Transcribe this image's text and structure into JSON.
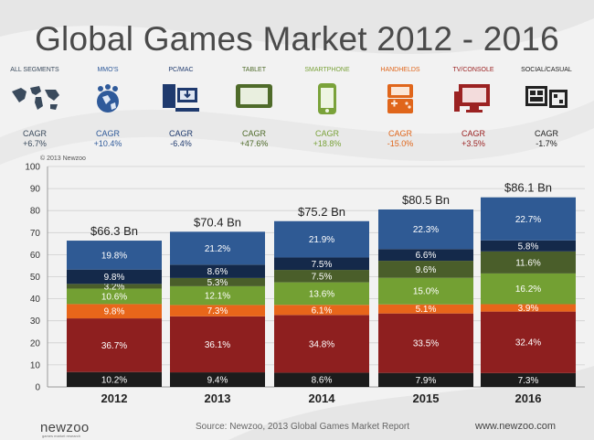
{
  "title": "Global Games Market 2012 - 2016",
  "copyright": "© 2013 Newzoo",
  "segments": [
    {
      "name": "ALL SEGMENTS",
      "icon": "globe-icon",
      "cagr_label": "CAGR",
      "cagr": "+6.7%",
      "color": "#3a4a5c"
    },
    {
      "name": "MMO'S",
      "icon": "mmo-globe-icon",
      "cagr_label": "CAGR",
      "cagr": "+10.4%",
      "color": "#2f5a9a"
    },
    {
      "name": "PC/MAC",
      "icon": "pc-icon",
      "cagr_label": "CAGR",
      "cagr": "-6.4%",
      "color": "#1f3a6e"
    },
    {
      "name": "TABLET",
      "icon": "tablet-icon",
      "cagr_label": "CAGR",
      "cagr": "+47.6%",
      "color": "#4f6b2a"
    },
    {
      "name": "SMARTPHONE",
      "icon": "smartphone-icon",
      "cagr_label": "CAGR",
      "cagr": "+18.8%",
      "color": "#7aa23a"
    },
    {
      "name": "HANDHELDS",
      "icon": "handheld-icon",
      "cagr_label": "CAGR",
      "cagr": "-15.0%",
      "color": "#e0661b"
    },
    {
      "name": "TV/CONSOLE",
      "icon": "tv-console-icon",
      "cagr_label": "CAGR",
      "cagr": "+3.5%",
      "color": "#9b2222"
    },
    {
      "name": "SOCIAL/CASUAL",
      "icon": "social-casual-icon",
      "cagr_label": "CAGR",
      "cagr": "-1.7%",
      "color": "#222222"
    }
  ],
  "chart_data": {
    "type": "bar",
    "stacked": true,
    "categories": [
      "2012",
      "2013",
      "2014",
      "2015",
      "2016"
    ],
    "totals": [
      "$66.3 Bn",
      "$70.4 Bn",
      "$75.2 Bn",
      "$80.5 Bn",
      "$86.1 Bn"
    ],
    "total_values": [
      66.3,
      70.4,
      75.2,
      80.5,
      86.1
    ],
    "ylim": [
      0,
      100
    ],
    "yticks": [
      0,
      10,
      20,
      30,
      40,
      50,
      60,
      70,
      80,
      90,
      100
    ],
    "grid": true,
    "series": [
      {
        "color": "#1c1c1c",
        "labels": [
          "10.2%",
          "9.4%",
          "8.6%",
          "7.9%",
          "7.3%"
        ],
        "shares": [
          10.2,
          9.4,
          8.6,
          7.9,
          7.3
        ]
      },
      {
        "color": "#8e1f1f",
        "labels": [
          "36.7%",
          "36.1%",
          "34.8%",
          "33.5%",
          "32.4%"
        ],
        "shares": [
          36.7,
          36.1,
          34.8,
          33.5,
          32.4
        ]
      },
      {
        "color": "#e8661a",
        "labels": [
          "9.8%",
          "7.3%",
          "6.1%",
          "5.1%",
          "3.9%"
        ],
        "shares": [
          9.8,
          7.3,
          6.1,
          5.1,
          3.9
        ]
      },
      {
        "color": "#73a033",
        "labels": [
          "10.6%",
          "12.1%",
          "13.6%",
          "15.0%",
          "16.2%"
        ],
        "shares": [
          10.6,
          12.1,
          13.6,
          15.0,
          16.2
        ]
      },
      {
        "color": "#4a5e2a",
        "labels": [
          "3.2%",
          "5.3%",
          "7.5%",
          "9.6%",
          "11.6%"
        ],
        "shares": [
          3.2,
          5.3,
          7.5,
          9.6,
          11.6
        ]
      },
      {
        "color": "#14294a",
        "labels": [
          "9.8%",
          "8.6%",
          "7.5%",
          "6.6%",
          "5.8%"
        ],
        "shares": [
          9.8,
          8.6,
          7.5,
          6.6,
          5.8
        ]
      },
      {
        "color": "#2f5a94",
        "labels": [
          "19.8%",
          "21.2%",
          "21.9%",
          "22.3%",
          "22.7%"
        ],
        "shares": [
          19.8,
          21.2,
          21.9,
          22.3,
          22.7
        ]
      }
    ]
  },
  "footer": {
    "logo": "newzoo",
    "tagline": "games market research",
    "source": "Source: Newzoo, 2013 Global Games Market Report",
    "url": "www.newzoo.com"
  }
}
